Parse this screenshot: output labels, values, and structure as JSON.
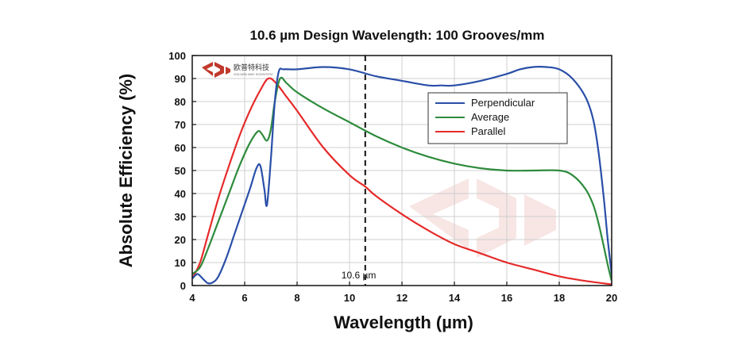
{
  "chart_data": {
    "type": "line",
    "title": "10.6 µm Design Wavelength: 100 Grooves/mm",
    "xlabel": "Wavelength (µm)",
    "ylabel": "Absolute Efficiency (%)",
    "xlim": [
      4,
      20
    ],
    "ylim": [
      0,
      100
    ],
    "xticks": [
      4,
      6,
      8,
      10,
      12,
      14,
      16,
      18,
      20
    ],
    "yticks": [
      0,
      10,
      20,
      30,
      40,
      50,
      60,
      70,
      80,
      90,
      100
    ],
    "grid": true,
    "legend_position": "top-right",
    "reference_line": {
      "x": 10.6,
      "label": "10.6 µm",
      "style": "dashed"
    },
    "series": [
      {
        "name": "Perpendicular",
        "color": "#2a4fa8",
        "x": [
          4.0,
          4.2,
          4.4,
          4.6,
          4.8,
          5.0,
          5.3,
          5.6,
          5.9,
          6.2,
          6.45,
          6.6,
          6.75,
          6.85,
          7.0,
          7.15,
          7.3,
          7.5,
          8.0,
          9.0,
          10.0,
          11.0,
          12.0,
          13.0,
          13.5,
          14.0,
          15.0,
          16.0,
          16.5,
          17.0,
          17.5,
          18.0,
          18.5,
          19.0,
          19.3,
          19.5,
          19.7,
          19.85,
          20.0
        ],
        "y": [
          3,
          5,
          3,
          1,
          1.5,
          4,
          12,
          22,
          32,
          42,
          51,
          52,
          42,
          35,
          55,
          80,
          93,
          94,
          94,
          95,
          94,
          91,
          89,
          87,
          87,
          87,
          89,
          92,
          94,
          95,
          95,
          94,
          90,
          82,
          72,
          58,
          38,
          20,
          5
        ]
      },
      {
        "name": "Average",
        "color": "#2e8b3c",
        "x": [
          4.0,
          4.3,
          4.6,
          5.0,
          5.4,
          5.8,
          6.2,
          6.5,
          6.65,
          6.85,
          7.0,
          7.15,
          7.35,
          7.6,
          8.0,
          9.0,
          10.0,
          11.0,
          12.0,
          13.0,
          14.0,
          15.0,
          16.0,
          17.0,
          18.0,
          18.5,
          19.0,
          19.3,
          19.5,
          19.7,
          19.85,
          20.0
        ],
        "y": [
          5,
          8,
          16,
          28,
          40,
          52,
          62,
          67,
          66,
          63,
          68,
          80,
          90,
          88,
          84,
          77,
          71,
          65,
          60,
          56,
          53,
          51,
          50,
          50,
          50,
          48,
          42,
          35,
          27,
          17,
          9,
          2
        ]
      },
      {
        "name": "Parallel",
        "color": "#e62a2a",
        "x": [
          4.0,
          4.3,
          4.6,
          5.0,
          5.4,
          5.8,
          6.2,
          6.6,
          6.9,
          7.2,
          7.6,
          8.0,
          9.0,
          10.0,
          10.6,
          11.0,
          12.0,
          13.0,
          14.0,
          15.0,
          16.0,
          17.0,
          18.0,
          19.0,
          20.0
        ],
        "y": [
          3,
          10,
          22,
          38,
          52,
          65,
          76,
          85,
          90,
          88,
          82,
          76,
          60,
          48,
          43,
          39,
          31,
          24,
          18,
          14,
          10,
          7,
          4,
          2,
          0.5
        ]
      }
    ]
  },
  "logo": {
    "text_cn": "欧普特科技",
    "text_en": "GOLDEN WAY SCIENTIFIC"
  }
}
